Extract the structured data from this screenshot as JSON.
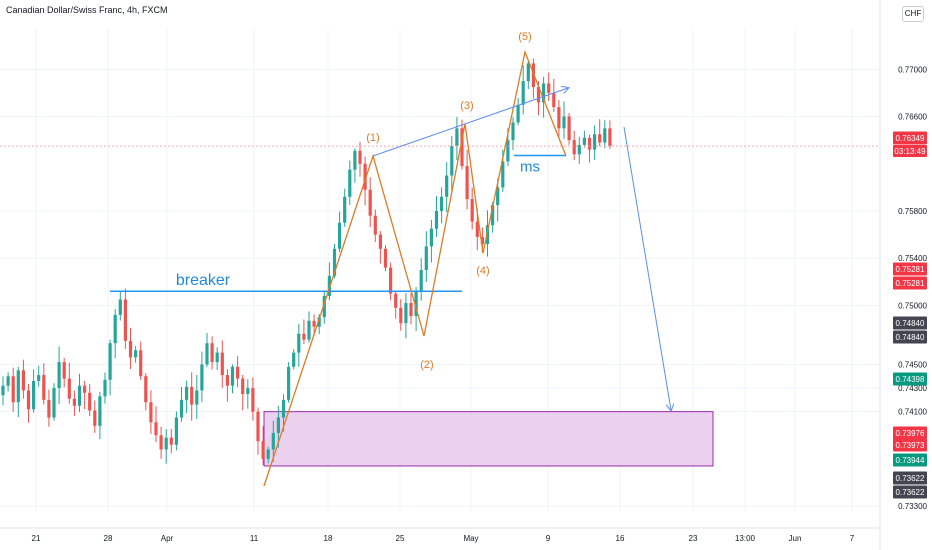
{
  "header": {
    "symbol_title": "Canadian Dollar/Swiss Franc, 4h, FXCM",
    "currency_button": "CHF"
  },
  "colors": {
    "up": "#26a69a",
    "down": "#ef5350",
    "wave": "#e07b24",
    "level_line": "#2196f3",
    "channel": "#5b8def",
    "zone_fill": "#e1bee7",
    "zone_stroke": "#9c27b0",
    "price_line": "#f7a6a6",
    "grid": "#f0f3fa"
  },
  "chart_data": {
    "type": "candlestick",
    "title": "Canadian Dollar/Swiss Franc, 4h, FXCM",
    "x_tick_labels": [
      "21",
      "28",
      "Apr",
      "11",
      "18",
      "25",
      "May",
      "9",
      "16",
      "23",
      "13:00",
      "Jun",
      "7"
    ],
    "y_tick_labels": [
      "0.77000",
      "0.76600",
      "0.75800",
      "0.75400",
      "0.75000",
      "0.74500",
      "0.74300",
      "0.74100",
      "0.73300"
    ],
    "y_range": [
      0.7325,
      0.7735
    ],
    "current_price": "0.76349",
    "countdown": "03:13:49",
    "price_badges": [
      {
        "value": "0.76349",
        "style": "red"
      },
      {
        "value": "0.75281",
        "style": "red"
      },
      {
        "value": "0.75281",
        "style": "red"
      },
      {
        "value": "0.74840",
        "style": "dark"
      },
      {
        "value": "0.74840",
        "style": "dark"
      },
      {
        "value": "0.74398",
        "style": "green"
      },
      {
        "value": "0.73976",
        "style": "red"
      },
      {
        "value": "0.73973",
        "style": "red"
      },
      {
        "value": "0.73944",
        "style": "green"
      },
      {
        "value": "0.73622",
        "style": "dark"
      },
      {
        "value": "0.73622",
        "style": "dark"
      }
    ],
    "annotations": {
      "wave_labels": [
        "(1)",
        "(2)",
        "(3)",
        "(4)",
        "(5)"
      ],
      "breaker_label": "breaker",
      "ms_label": "ms",
      "breaker_level": 0.7512,
      "ms_level": 0.7627,
      "demand_zone": [
        0.7364,
        0.741
      ],
      "projection_target": 0.7415
    },
    "series": [
      {
        "name": "price",
        "values": [
          0.7432,
          0.744,
          0.7418,
          0.7445,
          0.7428,
          0.7412,
          0.7436,
          0.7441,
          0.742,
          0.7405,
          0.743,
          0.7452,
          0.7438,
          0.7421,
          0.7415,
          0.7432,
          0.7426,
          0.7411,
          0.7398,
          0.7423,
          0.7437,
          0.7468,
          0.7492,
          0.7505,
          0.747,
          0.7456,
          0.7462,
          0.744,
          0.7418,
          0.7401,
          0.739,
          0.7378,
          0.7388,
          0.7382,
          0.7405,
          0.742,
          0.7431,
          0.7416,
          0.7428,
          0.745,
          0.7468,
          0.7452,
          0.746,
          0.7441,
          0.7432,
          0.7448,
          0.7438,
          0.7425,
          0.743,
          0.741,
          0.7385,
          0.737,
          0.7378,
          0.7392,
          0.7405,
          0.742,
          0.7448,
          0.746,
          0.7476,
          0.7471,
          0.7487,
          0.7482,
          0.749,
          0.7508,
          0.7525,
          0.7548,
          0.757,
          0.7592,
          0.7615,
          0.7631,
          0.762,
          0.7598,
          0.7576,
          0.756,
          0.7548,
          0.7532,
          0.751,
          0.7498,
          0.7485,
          0.7502,
          0.7491,
          0.7512,
          0.753,
          0.755,
          0.7565,
          0.758,
          0.7592,
          0.761,
          0.7635,
          0.765,
          0.7618,
          0.759,
          0.7571,
          0.7558,
          0.7552,
          0.7568,
          0.7585,
          0.76,
          0.7622,
          0.764,
          0.7655,
          0.767,
          0.769,
          0.7705,
          0.7685,
          0.7672,
          0.7688,
          0.768,
          0.7668,
          0.765,
          0.766,
          0.764,
          0.7628,
          0.7636,
          0.7642,
          0.7632,
          0.7645,
          0.7638,
          0.765,
          0.7635
        ]
      }
    ]
  }
}
